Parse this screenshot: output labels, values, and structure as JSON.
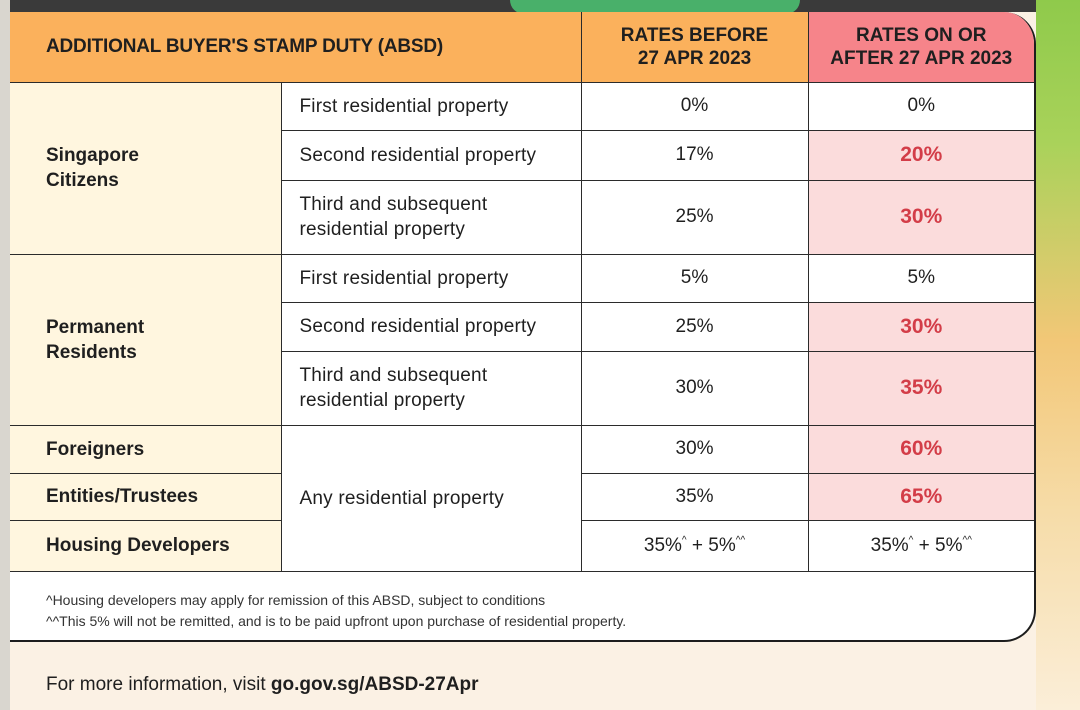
{
  "header": {
    "title": "ADDITIONAL BUYER'S STAMP DUTY (ABSD)",
    "before_line1": "RATES BEFORE",
    "before_line2": "27 APR 2023",
    "after_line1": "RATES ON OR",
    "after_line2": "AFTER 27 APR 2023"
  },
  "groups": {
    "singapore_citizens": {
      "line1": "Singapore",
      "line2": "Citizens",
      "rows": [
        {
          "property": "First residential property",
          "before": "0%",
          "after": "0%"
        },
        {
          "property": "Second residential property",
          "before": "17%",
          "after": "20%"
        },
        {
          "property_line1": "Third and subsequent",
          "property_line2": "residential property",
          "before": "25%",
          "after": "30%"
        }
      ]
    },
    "permanent_residents": {
      "line1": "Permanent",
      "line2": "Residents",
      "rows": [
        {
          "property": "First residential property",
          "before": "5%",
          "after": "5%"
        },
        {
          "property": "Second residential property",
          "before": "25%",
          "after": "30%"
        },
        {
          "property_line1": "Third and subsequent",
          "property_line2": "residential property",
          "before": "30%",
          "after": "35%"
        }
      ]
    },
    "others": {
      "property": "Any residential property",
      "rows": [
        {
          "name": "Foreigners",
          "before": "30%",
          "after": "60%"
        },
        {
          "name": "Entities/Trustees",
          "before": "35%",
          "after": "65%"
        },
        {
          "name": "Housing Developers",
          "before_a": "35%",
          "before_sup_a": "^",
          "before_b": " + 5%",
          "before_sup_b": "^^",
          "after_a": "35%",
          "after_sup_a": "^",
          "after_b": " + 5%",
          "after_sup_b": "^^"
        }
      ]
    }
  },
  "footnotes": [
    "^Housing developers may apply for remission of this ABSD, subject to conditions",
    "^^This 5% will not be remitted, and is to be paid upfront upon purchase of residential property."
  ],
  "more_info": {
    "prefix": "For more information, visit ",
    "link": "go.gov.sg/ABSD-27Apr"
  },
  "colors": {
    "header_orange": "#fbb15c",
    "header_red": "#f6848a",
    "highlight_bg": "#fbdcdc",
    "highlight_text": "#d33d48",
    "group_bg": "#fff6df"
  }
}
